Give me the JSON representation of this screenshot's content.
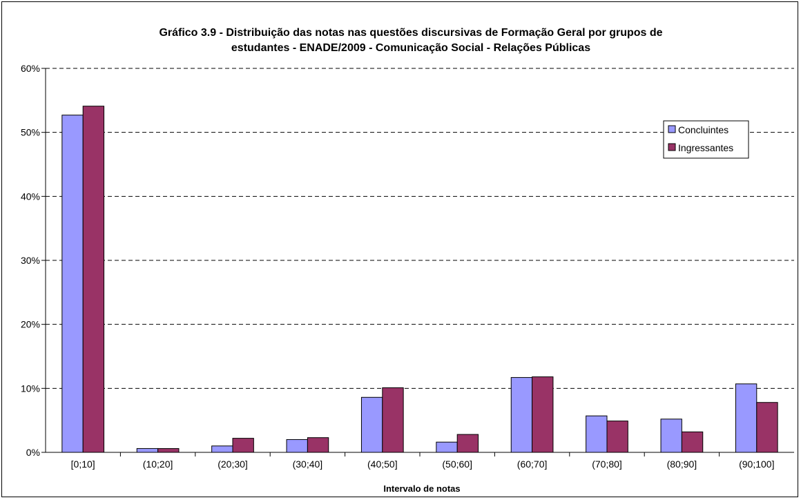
{
  "chart_data": {
    "type": "bar",
    "title_lines": [
      "Gráfico 3.9 - Distribuição das notas nas questões discursivas de Formação Geral  por grupos de",
      "estudantes - ENADE/2009 - Comunicação Social - Relações Públicas"
    ],
    "xlabel": "Intervalo de notas",
    "ylabel": "",
    "categories": [
      "[0;10]",
      "(10;20]",
      "(20;30]",
      "(30;40]",
      "(40;50]",
      "(50;60]",
      "(60;70]",
      "(70;80]",
      "(80;90]",
      "(90;100]"
    ],
    "series": [
      {
        "name": "Concluintes",
        "color": "#9999ff",
        "values": [
          52.7,
          0.6,
          1.0,
          2.0,
          8.6,
          1.6,
          11.7,
          5.7,
          5.2,
          10.7
        ]
      },
      {
        "name": "Ingressantes",
        "color": "#993366",
        "values": [
          54.1,
          0.6,
          2.2,
          2.3,
          10.1,
          2.8,
          11.8,
          4.9,
          3.2,
          7.8
        ]
      }
    ],
    "ylim": [
      0,
      60
    ],
    "yticks": [
      0,
      10,
      20,
      30,
      40,
      50,
      60
    ],
    "ytick_labels": [
      "0%",
      "10%",
      "20%",
      "30%",
      "40%",
      "50%",
      "60%"
    ],
    "grid": "dashed horizontal",
    "legend_position": "top-right"
  }
}
